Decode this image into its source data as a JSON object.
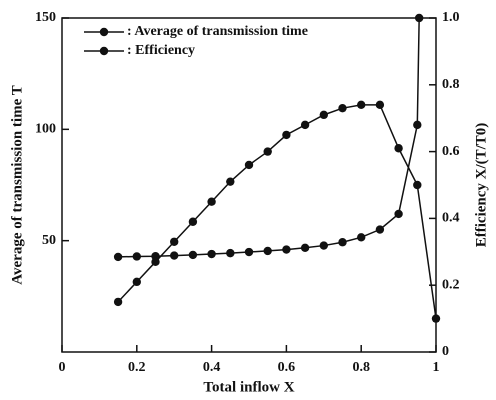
{
  "chart_data": {
    "type": "line",
    "xlabel": "Total inflow X",
    "ylabel": "Average of transmission time T",
    "y2label": "Efficiency X/(T/T0)",
    "xlim": [
      0,
      1
    ],
    "xticks": [
      0,
      0.2,
      0.4,
      0.6,
      0.8,
      1
    ],
    "ylim": [
      0,
      150
    ],
    "yticks": [
      50,
      100,
      150
    ],
    "y2lim": [
      0,
      1
    ],
    "y2ticks": [
      0,
      0.2,
      0.4,
      0.6,
      0.8,
      {
        "value": 1,
        "label": "1.0"
      }
    ],
    "legend": "upper left",
    "series": [
      {
        "name": ": Average of transmission time",
        "color": "#111111",
        "axis": "y",
        "x": [
          0.15,
          0.2,
          0.25,
          0.3,
          0.35,
          0.4,
          0.45,
          0.5,
          0.55,
          0.6,
          0.65,
          0.7,
          0.75,
          0.8,
          0.85,
          0.9,
          0.95,
          0.955
        ],
        "values": [
          42.7,
          42.9,
          43,
          43.3,
          43.6,
          44,
          44.4,
          44.9,
          45.4,
          46,
          46.8,
          47.8,
          49.3,
          51.5,
          55,
          62,
          102,
          150
        ]
      },
      {
        "name": ": Efficiency",
        "color": "#111111",
        "axis": "y2",
        "x": [
          0.15,
          0.2,
          0.25,
          0.3,
          0.35,
          0.4,
          0.45,
          0.5,
          0.55,
          0.6,
          0.65,
          0.7,
          0.75,
          0.8,
          0.85,
          0.9,
          0.95,
          1
        ],
        "values": [
          0.15,
          0.21,
          0.27,
          0.33,
          0.39,
          0.45,
          0.51,
          0.56,
          0.6,
          0.65,
          0.68,
          0.71,
          0.73,
          0.74,
          0.74,
          0.61,
          0.5,
          0.1
        ]
      }
    ]
  }
}
